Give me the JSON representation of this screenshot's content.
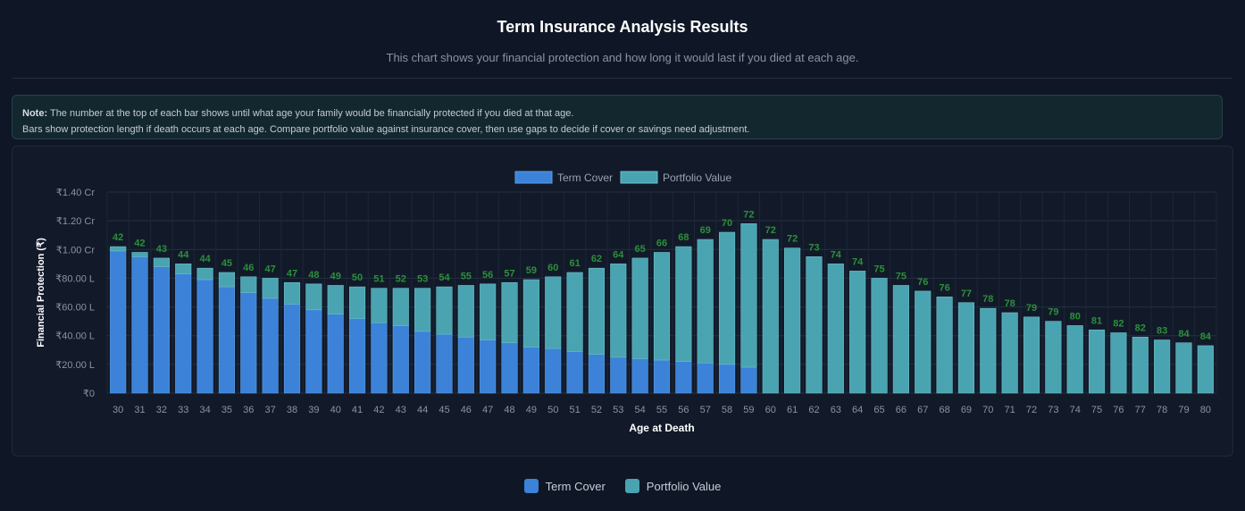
{
  "page": {
    "title": "Term Insurance Analysis Results",
    "subtitle": "This chart shows your financial protection and how long it would last if you died at each age.",
    "note_label": "Note:",
    "note_line1": "The number at the top of each bar shows until what age your family would be financially protected if you died at that age.",
    "note_line2": "Bars show protection length if death occurs at each age. Compare portfolio value against insurance cover, then use gaps to decide if cover or savings need adjustment."
  },
  "colors": {
    "term_cover": "#3b82d8",
    "portfolio": "#4aa3b0",
    "label": "#2c8f3a"
  },
  "bottom_legend": [
    {
      "label": "Term Cover",
      "color": "#3b82d8"
    },
    {
      "label": "Portfolio Value",
      "color": "#4aa3b0"
    }
  ],
  "chart_data": {
    "type": "bar",
    "stacked": true,
    "xlabel": "Age at Death",
    "ylabel": "Financial Protection (₹)",
    "ylim": [
      0,
      140
    ],
    "y_unit": "Lakh (₹)",
    "y_ticks": [
      {
        "value": 0,
        "label": "₹0"
      },
      {
        "value": 20,
        "label": "₹20.00 L"
      },
      {
        "value": 40,
        "label": "₹40.00 L"
      },
      {
        "value": 60,
        "label": "₹60.00 L"
      },
      {
        "value": 80,
        "label": "₹80.00 L"
      },
      {
        "value": 100,
        "label": "₹1.00 Cr"
      },
      {
        "value": 120,
        "label": "₹1.20 Cr"
      },
      {
        "value": 140,
        "label": "₹1.40 Cr"
      }
    ],
    "legend_position": "top",
    "grid": true,
    "categories": [
      "30",
      "31",
      "32",
      "33",
      "34",
      "35",
      "36",
      "37",
      "38",
      "39",
      "40",
      "41",
      "42",
      "43",
      "44",
      "45",
      "46",
      "47",
      "48",
      "49",
      "50",
      "51",
      "52",
      "53",
      "54",
      "55",
      "56",
      "57",
      "58",
      "59",
      "60",
      "61",
      "62",
      "63",
      "64",
      "65",
      "66",
      "67",
      "68",
      "69",
      "70",
      "71",
      "72",
      "73",
      "74",
      "75",
      "76",
      "77",
      "78",
      "79",
      "80"
    ],
    "series": [
      {
        "name": "Term Cover",
        "values": [
          99,
          95,
          88,
          83,
          79,
          74,
          70,
          66,
          62,
          58,
          55,
          52,
          49,
          47,
          43,
          41,
          39,
          37,
          35,
          32,
          31,
          29,
          27,
          25,
          24,
          23,
          22,
          21,
          20,
          18,
          0,
          0,
          0,
          0,
          0,
          0,
          0,
          0,
          0,
          0,
          0,
          0,
          0,
          0,
          0,
          0,
          0,
          0,
          0,
          0,
          0
        ]
      },
      {
        "name": "Portfolio Value",
        "values": [
          3,
          3,
          6,
          7,
          8,
          10,
          11,
          14,
          15,
          18,
          20,
          22,
          24,
          26,
          30,
          33,
          36,
          39,
          42,
          47,
          50,
          55,
          60,
          65,
          70,
          75,
          80,
          86,
          92,
          100,
          107,
          101,
          95,
          90,
          85,
          80,
          75,
          71,
          67,
          63,
          59,
          56,
          53,
          50,
          47,
          44,
          42,
          39,
          37,
          35,
          33
        ]
      }
    ],
    "bar_labels": [
      "42",
      "42",
      "43",
      "44",
      "44",
      "45",
      "46",
      "47",
      "47",
      "48",
      "49",
      "50",
      "51",
      "52",
      "53",
      "54",
      "55",
      "56",
      "57",
      "59",
      "60",
      "61",
      "62",
      "64",
      "65",
      "66",
      "68",
      "69",
      "70",
      "72",
      "72",
      "72",
      "73",
      "74",
      "74",
      "75",
      "75",
      "76",
      "76",
      "77",
      "78",
      "78",
      "79",
      "79",
      "80",
      "81",
      "82",
      "82",
      "83",
      "84",
      "84"
    ]
  }
}
